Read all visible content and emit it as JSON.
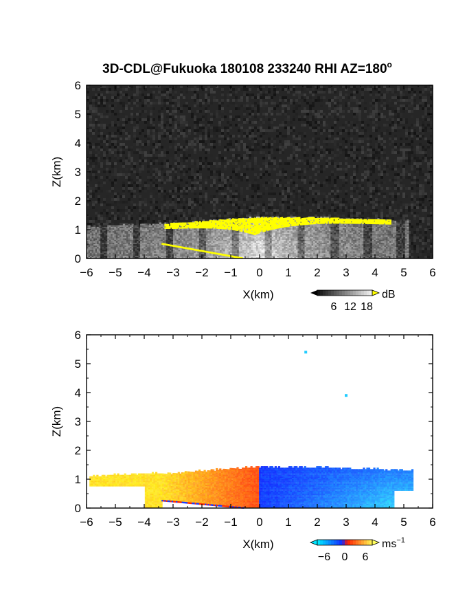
{
  "figure": {
    "title": "3D-CDL@Fukuoka 180108 233240 RHI AZ=180",
    "title_deg": "o"
  },
  "colors": {
    "background": "#ffffff",
    "axis": "#000000",
    "noise_dark": "#262626",
    "aerosol_yellow": "#ffff00",
    "velocity_negative": "#1a3cff",
    "velocity_zero": "#ff2a00",
    "velocity_positive": "#ffe63c",
    "velocity_light_negative": "#22ccff"
  },
  "chart_data": [
    {
      "type": "heatmap",
      "name": "snr",
      "xlabel": "X(km)",
      "ylabel": "Z(km)",
      "xlim": [
        -6,
        6
      ],
      "ylim": [
        0,
        6
      ],
      "xticks": [
        -6,
        -5,
        -4,
        -3,
        -2,
        -1,
        0,
        1,
        2,
        3,
        4,
        5,
        6
      ],
      "yticks": [
        0,
        1,
        2,
        3,
        4,
        5,
        6
      ],
      "colorbar": {
        "unit": "dB",
        "ticks": [
          6,
          12,
          18
        ],
        "range": [
          0,
          20
        ],
        "colormap": "grayscale-to-yellow"
      },
      "layer": {
        "x_range": [
          -6,
          5.1
        ],
        "top_km": [
          1.1,
          1.2,
          1.35,
          1.4,
          1.4,
          1.3
        ],
        "top_x": [
          -6,
          -3,
          -1,
          0,
          2,
          5
        ],
        "strong_echo_x": [
          -3.3,
          4.5
        ],
        "strong_echo_top_km": 1.4
      }
    },
    {
      "type": "heatmap",
      "name": "radial_velocity",
      "xlabel": "X(km)",
      "ylabel": "Z(km)",
      "xlim": [
        -6,
        6
      ],
      "ylim": [
        0,
        6
      ],
      "xticks": [
        -6,
        -5,
        -4,
        -3,
        -2,
        -1,
        0,
        1,
        2,
        3,
        4,
        5,
        6
      ],
      "yticks": [
        0,
        1,
        2,
        3,
        4,
        5,
        6
      ],
      "colorbar": {
        "unit": "ms",
        "unit_exp": "−1",
        "tick_labels": [
          "−6",
          "0",
          "6"
        ],
        "range": [
          -8,
          8
        ],
        "colormap": "cyan-blue-red-yellow"
      },
      "layer": {
        "x_range": [
          -5.9,
          5.3
        ],
        "negative_side": "x > 0",
        "positive_side": "x < 0"
      },
      "isolated_points": [
        {
          "x": 1.6,
          "z": 5.4
        },
        {
          "x": 3.0,
          "z": 3.9
        }
      ]
    }
  ]
}
